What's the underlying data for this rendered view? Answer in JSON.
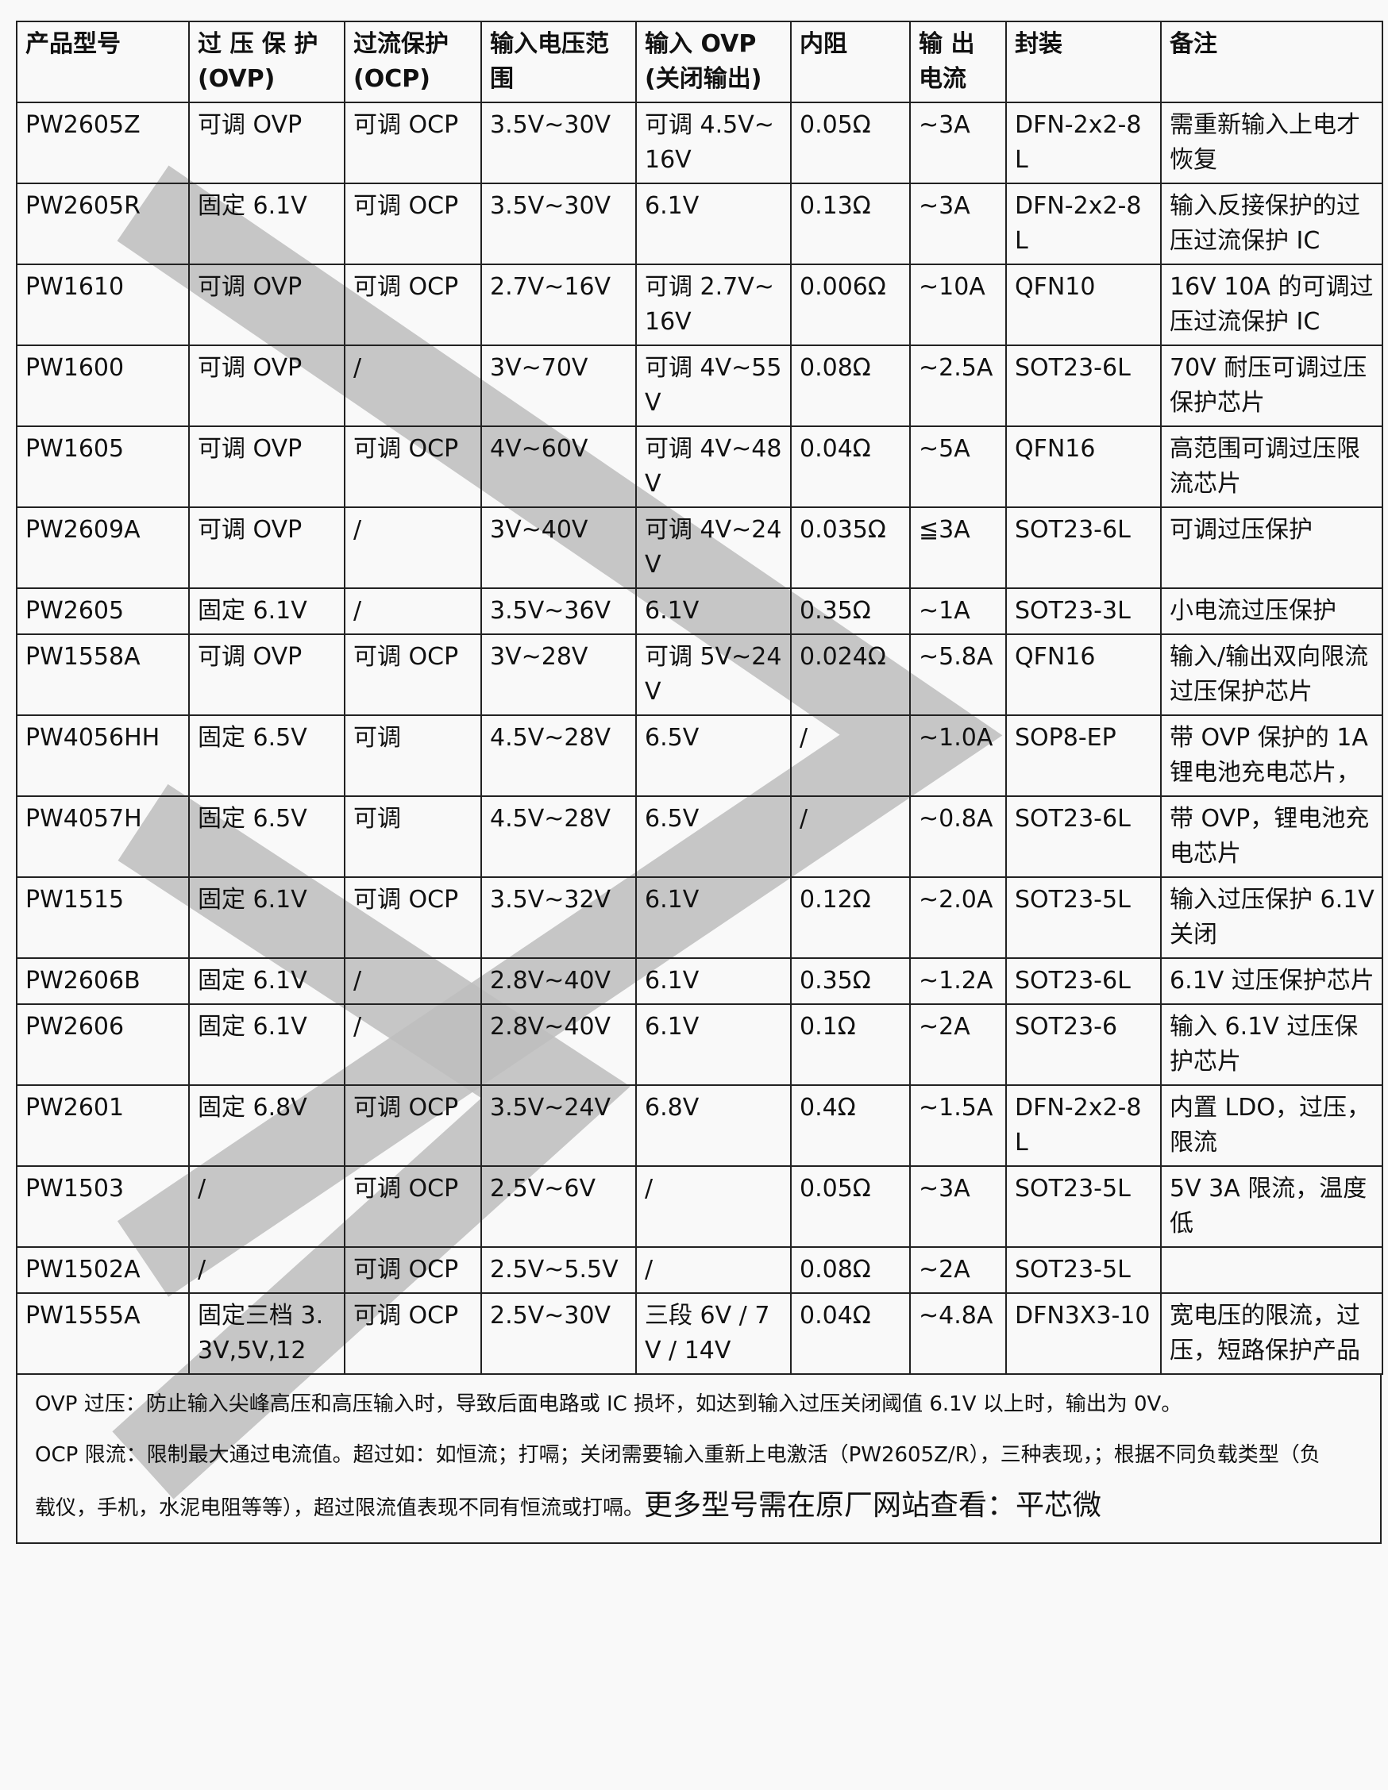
{
  "table": {
    "headers": [
      "产品型号",
      "过 压 保 护 (OVP)",
      "过流保护 (OCP)",
      "输入电压范围",
      "输入 OVP (关闭输出)",
      "内阻",
      "输 出 电流",
      "封装",
      "备注"
    ],
    "rows": [
      [
        "PW2605Z",
        "可调 OVP",
        "可调 OCP",
        "3.5V~30V",
        "可调 4.5V~16V",
        "0.05Ω",
        "~3A",
        "DFN-2x2-8L",
        "需重新输入上电才恢复"
      ],
      [
        "PW2605R",
        "固定 6.1V",
        "可调 OCP",
        "3.5V~30V",
        "6.1V",
        "0.13Ω",
        "~3A",
        "DFN-2x2-8L",
        "输入反接保护的过压过流保护 IC"
      ],
      [
        "PW1610",
        "可调 OVP",
        "可调 OCP",
        "2.7V~16V",
        "可调 2.7V~16V",
        "0.006Ω",
        "~10A",
        "QFN10",
        "16V 10A 的可调过压过流保护 IC"
      ],
      [
        "PW1600",
        "可调 OVP",
        "/",
        "3V~70V",
        "可调 4V~55V",
        "0.08Ω",
        "~2.5A",
        "SOT23-6L",
        "70V 耐压可调过压保护芯片"
      ],
      [
        "PW1605",
        "可调 OVP",
        "可调 OCP",
        "4V~60V",
        "可调 4V~48V",
        "0.04Ω",
        "~5A",
        "QFN16",
        "高范围可调过压限流芯片"
      ],
      [
        "PW2609A",
        "可调 OVP",
        "/",
        "3V~40V",
        "可调 4V~24V",
        "0.035Ω",
        "≦3A",
        "SOT23-6L",
        "可调过压保护"
      ],
      [
        "PW2605",
        "固定 6.1V",
        "/",
        "3.5V~36V",
        "6.1V",
        "0.35Ω",
        "~1A",
        "SOT23-3L",
        "小电流过压保护"
      ],
      [
        "PW1558A",
        "可调 OVP",
        "可调 OCP",
        "3V~28V",
        "可调 5V~24V",
        "0.024Ω",
        "~5.8A",
        "QFN16",
        "输入/输出双向限流过压保护芯片"
      ],
      [
        "PW4056HH",
        "固定 6.5V",
        "可调",
        "4.5V~28V",
        "6.5V",
        "/",
        "~1.0A",
        "SOP8-EP",
        "带 OVP 保护的 1A 锂电池充电芯片，"
      ],
      [
        "PW4057H",
        "固定 6.5V",
        "可调",
        "4.5V~28V",
        "6.5V",
        "/",
        "~0.8A",
        "SOT23-6L",
        "带 OVP，锂电池充电芯片"
      ],
      [
        "PW1515",
        "固定 6.1V",
        "可调 OCP",
        "3.5V~32V",
        "6.1V",
        "0.12Ω",
        "~2.0A",
        "SOT23-5L",
        "输入过压保护 6.1V 关闭"
      ],
      [
        "PW2606B",
        "固定 6.1V",
        "/",
        "2.8V~40V",
        "6.1V",
        "0.35Ω",
        "~1.2A",
        "SOT23-6L",
        "6.1V 过压保护芯片"
      ],
      [
        "PW2606",
        "固定 6.1V",
        "/",
        "2.8V~40V",
        "6.1V",
        "0.1Ω",
        "~2A",
        "SOT23-6",
        "输入 6.1V 过压保护芯片"
      ],
      [
        "PW2601",
        "固定 6.8V",
        "可调 OCP",
        "3.5V~24V",
        "6.8V",
        "0.4Ω",
        "~1.5A",
        "DFN-2x2-8L",
        "内置 LDO，过压，限流"
      ],
      [
        "PW1503",
        "/",
        "可调 OCP",
        "2.5V~6V",
        "/",
        "0.05Ω",
        "~3A",
        "SOT23-5L",
        "5V 3A 限流，温度低"
      ],
      [
        "PW1502A",
        "/",
        "可调 OCP",
        "2.5V~5.5V",
        "/",
        "0.08Ω",
        "~2A",
        "SOT23-5L",
        ""
      ],
      [
        "PW1555A",
        "固定三档 3.3V,5V,12",
        "可调 OCP",
        "2.5V~30V",
        "三段 6V / 7V / 14V",
        "0.04Ω",
        "~4.8A",
        "DFN3X3-10",
        "宽电压的限流，过压，短路保护产品"
      ]
    ]
  },
  "notes": {
    "ovp": "OVP 过压：防止输入尖峰高压和高压输入时，导致后面电路或 IC 损坏，如达到输入过压关闭阈值 6.1V 以上时，输出为 0V。",
    "ocp_line1": "OCP 限流：限制最大通过电流值。超过如：如恒流；打嗝；关闭需要输入重新上电激活（PW2605Z/R），三种表现，；根据不同负载类型（负",
    "ocp_line2": "载仪，手机，水泥电阻等等），超过限流值表现不同有恒流或打嗝。",
    "more": "更多型号需在原厂网站查看：平芯微"
  },
  "watermark_color": "#bdbdbd"
}
